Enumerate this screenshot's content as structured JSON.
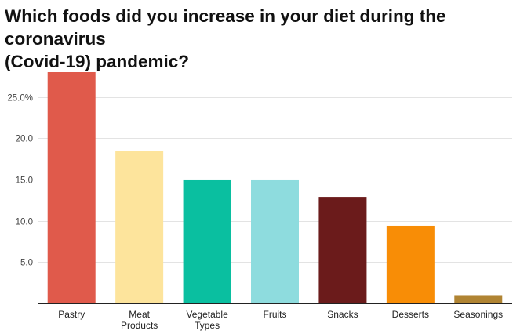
{
  "chart_data": {
    "type": "bar",
    "title": "Which foods did you increase in your diet during the coronavirus\n(Covid-19) pandemic?",
    "xlabel": "",
    "ylabel": "",
    "categories": [
      "Pastry",
      "Meat Products",
      "Vegetable Types",
      "Fruits",
      "Snacks",
      "Desserts",
      "Seasonings"
    ],
    "category_label_lines": [
      [
        "Pastry"
      ],
      [
        "Meat",
        "Products"
      ],
      [
        "Vegetable",
        "Types"
      ],
      [
        "Fruits"
      ],
      [
        "Snacks"
      ],
      [
        "Desserts"
      ],
      [
        "Seasonings"
      ]
    ],
    "values": [
      28.0,
      18.5,
      15.0,
      15.0,
      12.9,
      9.4,
      1.0
    ],
    "colors": [
      "#E05A4B",
      "#FDE49C",
      "#0ABFA0",
      "#8EDCDE",
      "#6B1B1B",
      "#F88D06",
      "#B08433"
    ],
    "ylim": [
      0,
      28.5
    ],
    "yticks": [
      5,
      10,
      15,
      20,
      25
    ],
    "ytick_labels": [
      "5.0",
      "10.0",
      "15.0",
      "20.0",
      "25.0%"
    ],
    "grid": true,
    "legend": "none"
  }
}
